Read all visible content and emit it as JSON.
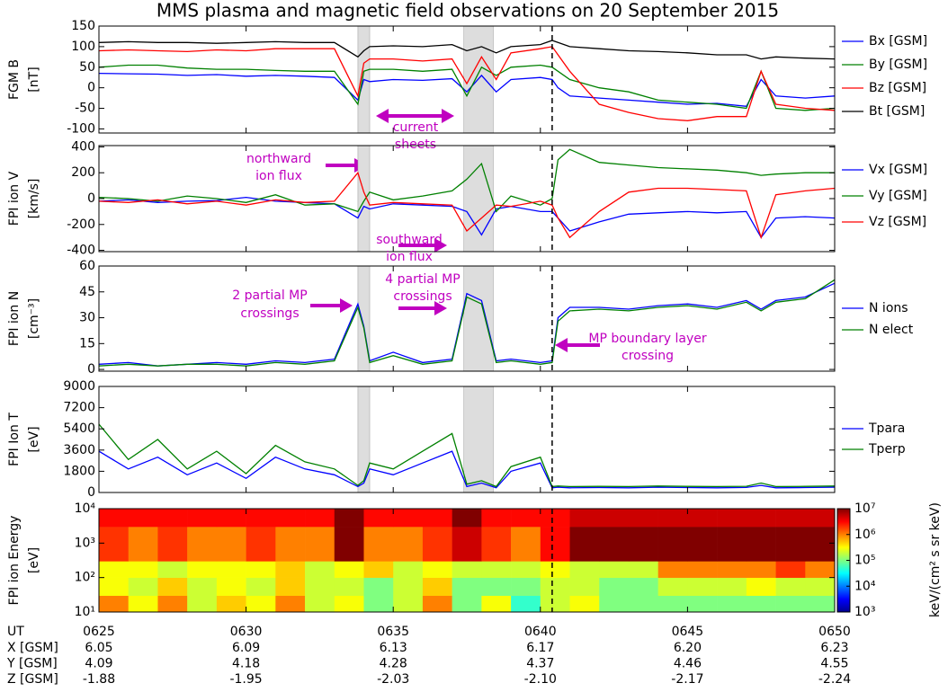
{
  "title": "MMS plasma and magnetic field observations on 20 September 2015",
  "chart_data": [
    {
      "type": "line",
      "ylabel": [
        "FGM B",
        "[nT]"
      ],
      "xlim": [
        625,
        650
      ],
      "ylim": [
        -110,
        150
      ],
      "yticks": [
        -100,
        -50,
        0,
        50,
        100,
        150
      ],
      "shaded": [
        [
          633.8,
          634.2
        ],
        [
          637.4,
          638.4
        ]
      ],
      "vline": 640.4,
      "annotations": [
        [
          "current",
          "sheets"
        ]
      ],
      "x": [
        625,
        626,
        627,
        628,
        629,
        630,
        631,
        632,
        633,
        633.8,
        634,
        634.2,
        635,
        636,
        637,
        637.5,
        638,
        638.5,
        639,
        640,
        640.4,
        640.6,
        641,
        642,
        643,
        644,
        645,
        646,
        647,
        647.5,
        648,
        649,
        650
      ],
      "series": [
        {
          "name": "Bx [GSM]",
          "color": "#0000ff",
          "values": [
            35,
            34,
            33,
            30,
            32,
            28,
            30,
            28,
            25,
            -30,
            20,
            15,
            20,
            18,
            22,
            -10,
            30,
            -10,
            20,
            25,
            20,
            0,
            -20,
            -25,
            -30,
            -35,
            -40,
            -38,
            -45,
            20,
            -20,
            -25,
            -20
          ]
        },
        {
          "name": "By [GSM]",
          "color": "#008000",
          "values": [
            50,
            55,
            55,
            48,
            45,
            45,
            42,
            40,
            40,
            -40,
            40,
            45,
            45,
            40,
            45,
            -20,
            50,
            30,
            50,
            55,
            50,
            40,
            20,
            0,
            -10,
            -30,
            -35,
            -40,
            -50,
            40,
            -50,
            -55,
            -50
          ]
        },
        {
          "name": "Bz [GSM]",
          "color": "#ff0000",
          "values": [
            90,
            92,
            90,
            88,
            92,
            90,
            95,
            95,
            95,
            -20,
            60,
            70,
            70,
            65,
            70,
            10,
            75,
            20,
            85,
            95,
            100,
            80,
            40,
            -40,
            -60,
            -75,
            -80,
            -70,
            -70,
            40,
            -40,
            -50,
            -55
          ]
        },
        {
          "name": "Bt [GSM]",
          "color": "#000000",
          "values": [
            110,
            112,
            110,
            110,
            108,
            110,
            112,
            110,
            110,
            75,
            90,
            100,
            102,
            100,
            105,
            90,
            100,
            85,
            100,
            105,
            115,
            110,
            100,
            95,
            90,
            88,
            85,
            80,
            80,
            70,
            75,
            72,
            70
          ]
        }
      ]
    },
    {
      "type": "line",
      "ylabel": [
        "FPI ion V",
        "[km/s]"
      ],
      "xlim": [
        625,
        650
      ],
      "ylim": [
        -410,
        410
      ],
      "yticks": [
        -400,
        -200,
        0,
        200,
        400
      ],
      "shaded": [
        [
          633.8,
          634.2
        ],
        [
          637.4,
          638.4
        ]
      ],
      "vline": 640.4,
      "annotations": [
        [
          "northward",
          "ion flux"
        ],
        [
          "southward",
          "ion flux"
        ]
      ],
      "x": [
        625,
        626,
        627,
        628,
        629,
        630,
        631,
        632,
        633,
        633.8,
        634,
        634.2,
        635,
        636,
        637,
        637.5,
        638,
        638.5,
        639,
        640,
        640.4,
        640.6,
        641,
        642,
        643,
        644,
        645,
        646,
        647,
        647.5,
        648,
        649,
        650
      ],
      "series": [
        {
          "name": "Vx [GSM]",
          "color": "#0000ff",
          "values": [
            -20,
            -10,
            -30,
            -20,
            -15,
            10,
            -20,
            -30,
            -40,
            -150,
            -60,
            -80,
            -40,
            -50,
            -60,
            -100,
            -280,
            -80,
            -60,
            -100,
            -100,
            -150,
            -250,
            -180,
            -120,
            -110,
            -100,
            -110,
            -100,
            -300,
            -150,
            -140,
            -150
          ]
        },
        {
          "name": "Vy [GSM]",
          "color": "#008000",
          "values": [
            10,
            0,
            -20,
            20,
            0,
            -30,
            30,
            -50,
            -40,
            -100,
            -20,
            50,
            -10,
            20,
            60,
            150,
            270,
            -100,
            20,
            -50,
            0,
            300,
            380,
            280,
            260,
            240,
            230,
            220,
            200,
            180,
            190,
            200,
            200
          ]
        },
        {
          "name": "Vz [GSM]",
          "color": "#ff0000",
          "values": [
            -20,
            -30,
            -10,
            -40,
            -20,
            -50,
            -10,
            -30,
            -20,
            200,
            50,
            -50,
            -30,
            -40,
            -50,
            -250,
            -150,
            -50,
            -60,
            -20,
            -50,
            -150,
            -300,
            -100,
            50,
            80,
            80,
            70,
            60,
            -300,
            30,
            60,
            80
          ]
        }
      ]
    },
    {
      "type": "line",
      "ylabel": [
        "FPI ion N",
        "[cm⁻³]"
      ],
      "xlim": [
        625,
        650
      ],
      "ylim": [
        -1,
        60
      ],
      "yticks": [
        0,
        15,
        30,
        45,
        60
      ],
      "shaded": [
        [
          633.8,
          634.2
        ],
        [
          637.4,
          638.4
        ]
      ],
      "vline": 640.4,
      "annotations": [
        [
          "2 partial MP",
          "crossings"
        ],
        [
          "4 partial MP",
          "crossings"
        ],
        [
          "MP boundary layer",
          "crossing"
        ]
      ],
      "x": [
        625,
        626,
        627,
        628,
        629,
        630,
        631,
        632,
        633,
        633.8,
        634,
        634.2,
        635,
        636,
        637,
        637.5,
        638,
        638.5,
        639,
        640,
        640.4,
        640.6,
        641,
        642,
        643,
        644,
        645,
        646,
        647,
        647.5,
        648,
        649,
        650
      ],
      "series": [
        {
          "name": "N ions",
          "color": "#0000ff",
          "values": [
            3,
            4,
            2,
            3,
            4,
            3,
            5,
            4,
            6,
            38,
            25,
            5,
            10,
            4,
            6,
            44,
            40,
            5,
            6,
            4,
            5,
            30,
            36,
            36,
            35,
            37,
            38,
            36,
            40,
            35,
            40,
            42,
            50
          ]
        },
        {
          "name": "N elect",
          "color": "#008000",
          "values": [
            2,
            3,
            2,
            3,
            3,
            2,
            4,
            3,
            5,
            36,
            24,
            4,
            8,
            3,
            5,
            42,
            38,
            4,
            5,
            3,
            4,
            28,
            34,
            35,
            34,
            36,
            37,
            35,
            39,
            34,
            39,
            41,
            52
          ]
        }
      ]
    },
    {
      "type": "line",
      "ylabel": [
        "FPI Ion T",
        "[eV]"
      ],
      "xlim": [
        625,
        650
      ],
      "ylim": [
        0,
        9000
      ],
      "yticks": [
        0,
        1800,
        3600,
        5400,
        7200,
        9000
      ],
      "shaded": [
        [
          633.8,
          634.2
        ],
        [
          637.4,
          638.4
        ]
      ],
      "vline": 640.4,
      "x": [
        625,
        626,
        627,
        628,
        629,
        630,
        631,
        632,
        633,
        633.8,
        634,
        634.2,
        635,
        636,
        637,
        637.5,
        638,
        638.5,
        639,
        640,
        640.4,
        640.6,
        641,
        642,
        643,
        644,
        645,
        646,
        647,
        647.5,
        648,
        649,
        650
      ],
      "series": [
        {
          "name": "Tpara",
          "color": "#0000ff",
          "values": [
            3500,
            2000,
            3000,
            1500,
            2500,
            1200,
            3000,
            2000,
            1500,
            500,
            800,
            2000,
            1500,
            2500,
            3500,
            500,
            800,
            400,
            1800,
            2500,
            400,
            450,
            400,
            420,
            400,
            450,
            420,
            400,
            430,
            600,
            400,
            420,
            450
          ]
        },
        {
          "name": "Tperp",
          "color": "#008000",
          "values": [
            5800,
            2800,
            4500,
            2000,
            3500,
            1600,
            4000,
            2600,
            2000,
            600,
            1000,
            2500,
            2000,
            3500,
            5000,
            700,
            1000,
            500,
            2200,
            3000,
            500,
            550,
            500,
            520,
            500,
            550,
            520,
            500,
            530,
            800,
            500,
            520,
            550
          ]
        }
      ]
    },
    {
      "type": "heatmap",
      "ylabel": [
        "FPI ion Energy",
        "[eV]"
      ],
      "log_y": true,
      "colormap": "jet",
      "log_z": true,
      "xlim": [
        625,
        650
      ],
      "ylim": [
        10,
        10000
      ],
      "vline": 640.4,
      "xticks": [
        {
          "value": 625,
          "label": "0625"
        },
        {
          "value": 630,
          "label": "0630"
        },
        {
          "value": 635,
          "label": "0635"
        },
        {
          "value": 640,
          "label": "0640"
        },
        {
          "value": 645,
          "label": "0645"
        },
        {
          "value": 650,
          "label": "0650"
        }
      ],
      "yticks": [
        {
          "value": 10,
          "label": "10¹"
        },
        {
          "value": 100,
          "label": "10²"
        },
        {
          "value": 1000,
          "label": "10³"
        },
        {
          "value": 10000,
          "label": "10⁴"
        }
      ],
      "zlim": [
        1000,
        10000000
      ],
      "zlabel": "keV/(cm² s sr keV)",
      "zticks": [
        {
          "value": 1000,
          "label": "10³"
        },
        {
          "value": 10000,
          "label": "10⁴"
        },
        {
          "value": 100000,
          "label": "10⁵"
        },
        {
          "value": 1000000,
          "label": "10⁶"
        },
        {
          "value": 10000000,
          "label": "10⁷"
        }
      ],
      "x_edges": [
        625,
        626,
        627,
        628,
        629,
        630,
        631,
        632,
        633,
        634,
        635,
        636,
        637,
        638,
        639,
        640,
        641,
        642,
        643,
        644,
        645,
        646,
        647,
        648,
        649,
        650
      ],
      "y_edges": [
        10,
        30,
        100,
        300,
        3000,
        10000
      ],
      "z": [
        [
          1000000.0,
          300000.0,
          1000000.0,
          200000.0,
          500000.0,
          300000.0,
          1000000.0,
          200000.0,
          300000.0,
          100000.0,
          200000.0,
          1000000.0,
          100000.0,
          300000.0,
          50000.0,
          200000.0,
          300000.0,
          100000.0,
          100000.0,
          100000.0,
          100000.0,
          100000.0,
          100000.0,
          100000.0,
          100000.0
        ],
        [
          300000.0,
          200000.0,
          500000.0,
          200000.0,
          300000.0,
          200000.0,
          500000.0,
          200000.0,
          200000.0,
          100000.0,
          200000.0,
          500000.0,
          100000.0,
          100000.0,
          100000.0,
          200000.0,
          200000.0,
          100000.0,
          100000.0,
          200000.0,
          200000.0,
          200000.0,
          300000.0,
          200000.0,
          200000.0
        ],
        [
          300000.0,
          300000.0,
          200000.0,
          300000.0,
          300000.0,
          300000.0,
          500000.0,
          200000.0,
          300000.0,
          500000.0,
          200000.0,
          300000.0,
          200000.0,
          200000.0,
          200000.0,
          300000.0,
          200000.0,
          200000.0,
          200000.0,
          1000000.0,
          1000000.0,
          1000000.0,
          1000000.0,
          2000000.0,
          1000000.0
        ],
        [
          2000000.0,
          1000000.0,
          2000000.0,
          1000000.0,
          1000000.0,
          2000000.0,
          1000000.0,
          1000000.0,
          10000000.0,
          1000000.0,
          1000000.0,
          2000000.0,
          5000000.0,
          2000000.0,
          1000000.0,
          3000000.0,
          10000000.0,
          10000000.0,
          10000000.0,
          10000000.0,
          10000000.0,
          10000000.0,
          10000000.0,
          10000000.0,
          10000000.0
        ],
        [
          3000000.0,
          3000000.0,
          3000000.0,
          3000000.0,
          3000000.0,
          3000000.0,
          3000000.0,
          3000000.0,
          10000000.0,
          3000000.0,
          3000000.0,
          3000000.0,
          10000000.0,
          3000000.0,
          3000000.0,
          3000000.0,
          5000000.0,
          5000000.0,
          5000000.0,
          5000000.0,
          5000000.0,
          5000000.0,
          5000000.0,
          5000000.0,
          5000000.0
        ]
      ]
    }
  ],
  "ephemeris": {
    "ut_label": "UT",
    "rows": [
      {
        "label": "X [GSM]",
        "values": [
          "6.05",
          "6.09",
          "6.13",
          "6.17",
          "6.20",
          "6.23"
        ]
      },
      {
        "label": "Y [GSM]",
        "values": [
          "4.09",
          "4.18",
          "4.28",
          "4.37",
          "4.46",
          "4.55"
        ]
      },
      {
        "label": "Z [GSM]",
        "values": [
          "-1.88",
          "-1.95",
          "-2.03",
          "-2.10",
          "-2.17",
          "-2.24"
        ]
      }
    ]
  }
}
